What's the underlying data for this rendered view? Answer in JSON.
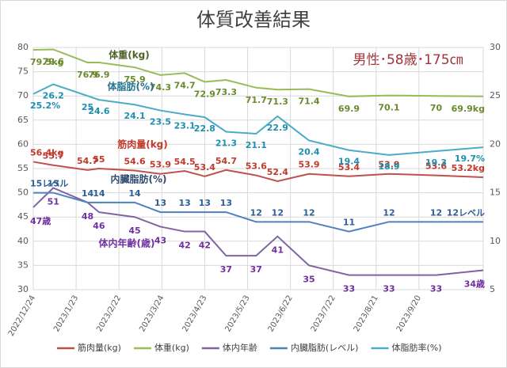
{
  "chart_data": {
    "type": "line",
    "title": "体質改善結果",
    "subtitle": "男性･58歳･175㎝",
    "x": [
      "2022/12/24",
      "2023/1/7",
      "2023/1/31",
      "2023/2/8",
      "2023/3/5",
      "2023/3/23",
      "2023/4/9",
      "2023/4/23",
      "2023/5/8",
      "2023/5/29",
      "2023/6/13",
      "2023/7/5",
      "2023/8/2",
      "2023/8/30",
      "2023/10/2",
      "2023/11/4"
    ],
    "xlim": [
      "2022/12/24",
      "2023/11/4"
    ],
    "xticks": [
      "2022/12/24",
      "2023/1/23",
      "2023/2/22",
      "2023/3/24",
      "2023/4/23",
      "2023/5/23",
      "2023/6/22",
      "2023/7/22",
      "2023/8/21",
      "2023/9/20"
    ],
    "ylim": [
      30,
      80
    ],
    "yticks": [
      30,
      35,
      40,
      45,
      50,
      55,
      60,
      65,
      70,
      75,
      80
    ],
    "y2lim": [
      5,
      30
    ],
    "y2ticks": [
      5,
      10,
      15,
      20,
      25,
      30
    ],
    "grid": true,
    "legend": "bottom",
    "annotations": [
      "体重(kg)",
      "体脂肪(%)",
      "筋肉量(kg)",
      "内臓脂肪(%)",
      "体内年齢(歳)"
    ],
    "series": [
      {
        "name": "筋肉量(kg)",
        "color": "#c0504d",
        "values": [
          56.4,
          55.7,
          54.7,
          55,
          54.6,
          53.9,
          54.5,
          53.4,
          54.7,
          53.6,
          52.4,
          53.9,
          53.4,
          53.9,
          53.6,
          53.2
        ],
        "value_labels": [
          "56.4kg",
          "55.7",
          "54.7",
          "55",
          "54.6",
          "53.9",
          "54.5",
          "53.4",
          "54.7",
          "53.6",
          "52.4",
          "53.9",
          "53.4",
          "53.9",
          "53.6",
          "53.2kg"
        ]
      },
      {
        "name": "体重(kg)",
        "color": "#9bbb59",
        "values": [
          79.5,
          79.6,
          76.9,
          76.9,
          75.9,
          74.3,
          74.7,
          72.9,
          73.3,
          71.7,
          71.3,
          71.4,
          69.9,
          70.1,
          70,
          69.9
        ],
        "value_labels": [
          "79.5kg",
          "79.6",
          "76.9",
          "76.9",
          "75.9",
          "74.3",
          "74.7",
          "72.9",
          "73.3",
          "71.7",
          "71.3",
          "71.4",
          "69.9",
          "70.1",
          "70",
          "69.9kg"
        ]
      },
      {
        "name": "体内年齢",
        "color": "#8064a2",
        "values": [
          47,
          51,
          48,
          46,
          45,
          43,
          42,
          42,
          37,
          37,
          41,
          35,
          33,
          33,
          33,
          34
        ],
        "value_labels": [
          "47歳",
          "51",
          "48",
          "46",
          "45",
          "43",
          "42",
          "42",
          "37",
          "37",
          "41",
          "35",
          "33",
          "33",
          "33",
          "34歳"
        ]
      },
      {
        "name": "内臓脂肪(レベル)",
        "color": "#4f81bd",
        "axis": "y2",
        "values": [
          15,
          15,
          14,
          14,
          14,
          13,
          13,
          13,
          13,
          12,
          12,
          12,
          11,
          12,
          12,
          12
        ],
        "value_labels": [
          "15レベル",
          "15",
          "14",
          "14",
          "14",
          "13",
          "13",
          "13",
          "13",
          "12",
          "12",
          "12",
          "11",
          "12",
          "12",
          "12レベル"
        ]
      },
      {
        "name": "体脂肪率(%)",
        "color": "#4bacc6",
        "axis": "y2",
        "values": [
          25.2,
          26.2,
          25,
          24.6,
          24.1,
          23.5,
          23.1,
          22.8,
          21.3,
          21.1,
          22.9,
          20.4,
          19.4,
          18.9,
          19.3,
          19.7
        ],
        "value_labels": [
          "25.2%",
          "26.2",
          "25",
          "24.6",
          "24.1",
          "23.5",
          "23.1",
          "22.8",
          "21.3",
          "21.1",
          "22.9",
          "20.4",
          "19.4",
          "18.9",
          "19.3",
          "19.7%"
        ]
      }
    ]
  }
}
